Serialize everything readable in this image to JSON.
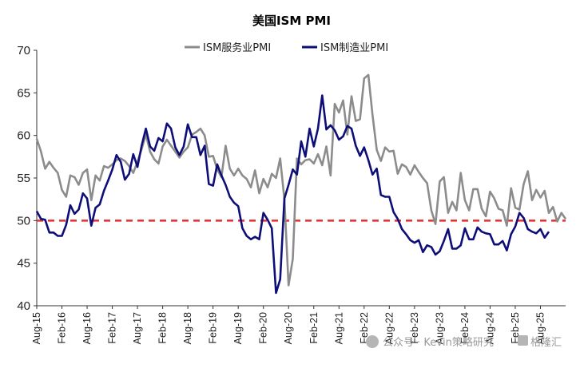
{
  "chart_data": {
    "type": "line",
    "title": "美国ISM PMI",
    "legend_position": "top-center",
    "ylim": [
      40,
      70
    ],
    "yticks": [
      40,
      45,
      50,
      55,
      60,
      65,
      70
    ],
    "xticks": [
      "Aug-15",
      "Feb-16",
      "Aug-16",
      "Feb-17",
      "Aug-17",
      "Feb-18",
      "Aug-18",
      "Feb-19",
      "Aug-19",
      "Feb-20",
      "Aug-20",
      "Feb-21",
      "Aug-21",
      "Feb-22",
      "Aug-22",
      "Feb-23",
      "Aug-23",
      "Feb-24",
      "Aug-24",
      "Feb-25",
      "Aug-25"
    ],
    "x_start": "2015-08",
    "reference_line": {
      "value": 50,
      "color": "#e03030",
      "style": "dashed"
    },
    "series": [
      {
        "name": "ISM服务业PMI",
        "color": "#8c8c8c",
        "values": [
          59.6,
          58.1,
          56.1,
          56.9,
          56.2,
          55.6,
          53.6,
          52.8,
          55.3,
          55.1,
          54.2,
          55.6,
          56.0,
          52.4,
          55.3,
          54.7,
          56.4,
          56.2,
          56.6,
          57.1,
          57.3,
          57.0,
          56.4,
          55.6,
          56.9,
          58.4,
          60.1,
          58.1,
          57.2,
          56.7,
          58.7,
          59.5,
          58.8,
          58.1,
          57.4,
          58.1,
          58.6,
          60.1,
          60.4,
          60.8,
          60.0,
          57.5,
          57.6,
          56.0,
          55.1,
          58.8,
          56.1,
          55.3,
          56.1,
          55.3,
          54.9,
          53.9,
          55.9,
          53.2,
          54.9,
          53.9,
          55.5,
          55.0,
          57.3,
          52.5,
          42.4,
          45.5,
          57.3,
          56.6,
          57.1,
          57.2,
          56.7,
          57.8,
          56.5,
          58.7,
          55.3,
          63.7,
          62.7,
          64.1,
          60.1,
          64.6,
          61.7,
          61.9,
          66.7,
          67.1,
          62.4,
          58.3,
          57.0,
          58.6,
          58.1,
          58.2,
          55.5,
          56.6,
          56.3,
          55.4,
          56.5,
          55.7,
          55.0,
          54.4,
          51.2,
          49.6,
          54.6,
          55.1,
          50.9,
          52.2,
          51.2,
          55.6,
          52.4,
          51.2,
          53.7,
          53.7,
          51.4,
          50.5,
          53.4,
          52.6,
          51.4,
          51.2,
          49.4,
          53.8,
          51.5,
          51.3,
          54.3,
          55.8,
          52.4,
          53.6,
          52.7,
          53.5,
          50.9,
          51.6,
          49.9,
          50.9,
          50.2
        ]
      },
      {
        "name": "ISM制造业PMI",
        "color": "#0e0e78",
        "values": [
          51.1,
          50.2,
          50.1,
          48.6,
          48.6,
          48.2,
          48.2,
          49.5,
          51.8,
          50.8,
          51.3,
          53.2,
          52.6,
          49.4,
          51.5,
          51.9,
          53.5,
          54.7,
          56.0,
          57.7,
          56.9,
          54.8,
          55.5,
          57.8,
          56.3,
          58.8,
          60.8,
          58.7,
          58.2,
          59.7,
          59.3,
          61.4,
          60.8,
          58.6,
          57.7,
          58.7,
          61.3,
          59.8,
          59.8,
          57.7,
          58.8,
          54.3,
          54.1,
          56.6,
          55.3,
          54.2,
          52.8,
          52.1,
          51.7,
          49.1,
          48.2,
          47.8,
          48.1,
          47.8,
          50.9,
          50.1,
          49.1,
          41.5,
          43.1,
          52.6,
          54.2,
          56.0,
          55.4,
          59.3,
          57.5,
          60.8,
          58.7,
          60.8,
          64.7,
          60.7,
          61.2,
          60.6,
          59.5,
          59.9,
          61.1,
          60.8,
          58.8,
          57.6,
          58.6,
          57.1,
          55.4,
          56.1,
          53.0,
          52.8,
          52.8,
          51.0,
          50.2,
          49.0,
          48.4,
          47.7,
          47.4,
          47.7,
          46.3,
          47.1,
          46.9,
          46.0,
          46.4,
          47.6,
          49.0,
          46.7,
          46.7,
          47.1,
          49.1,
          47.8,
          47.8,
          49.2,
          48.7,
          48.5,
          48.4,
          47.2,
          47.2,
          47.6,
          46.5,
          48.4,
          49.3,
          50.9,
          50.3,
          49.0,
          48.7,
          48.5,
          49.0,
          48.0,
          48.7
        ]
      }
    ]
  },
  "watermark": "公众号 · Kevin策略研究",
  "watermark_logo": "格隆汇"
}
